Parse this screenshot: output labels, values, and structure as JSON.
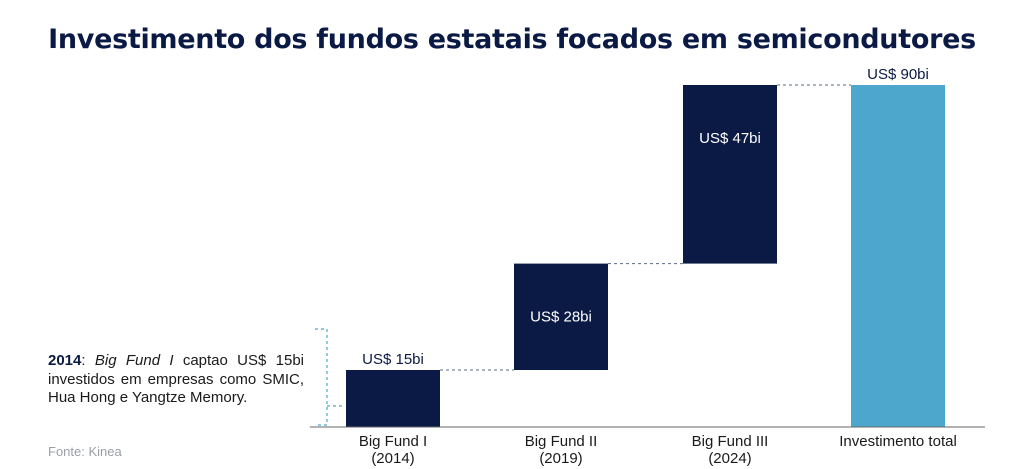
{
  "title": "Investimento dos fundos estatais focados em semicondutores",
  "chart_data": {
    "type": "bar",
    "subtype": "waterfall",
    "title": "Investimento dos fundos estatais focados em semicondutores",
    "categories": [
      [
        "Big Fund I",
        "(2014)"
      ],
      [
        "Big Fund II",
        "(2019)"
      ],
      [
        "Big Fund III",
        "(2024)"
      ],
      [
        "Investimento total"
      ]
    ],
    "values": [
      15,
      28,
      47,
      90
    ],
    "labels": [
      "US$ 15bi",
      "US$ 28bi",
      "US$ 47bi",
      "US$ 90bi"
    ],
    "is_total": [
      false,
      false,
      false,
      true
    ],
    "ylim": [
      0,
      90
    ],
    "grid": false,
    "colors": {
      "increment": "#0b1a45",
      "total": "#4da6cc",
      "connector": "#5a6b82"
    }
  },
  "note": {
    "year": "2014",
    "fund": "Big Fund I",
    "text": " captao US$ 15bi investidos em empresas como SMIC, Hua Hong e Yangtze Memory."
  },
  "source": "Fonte: Kinea"
}
